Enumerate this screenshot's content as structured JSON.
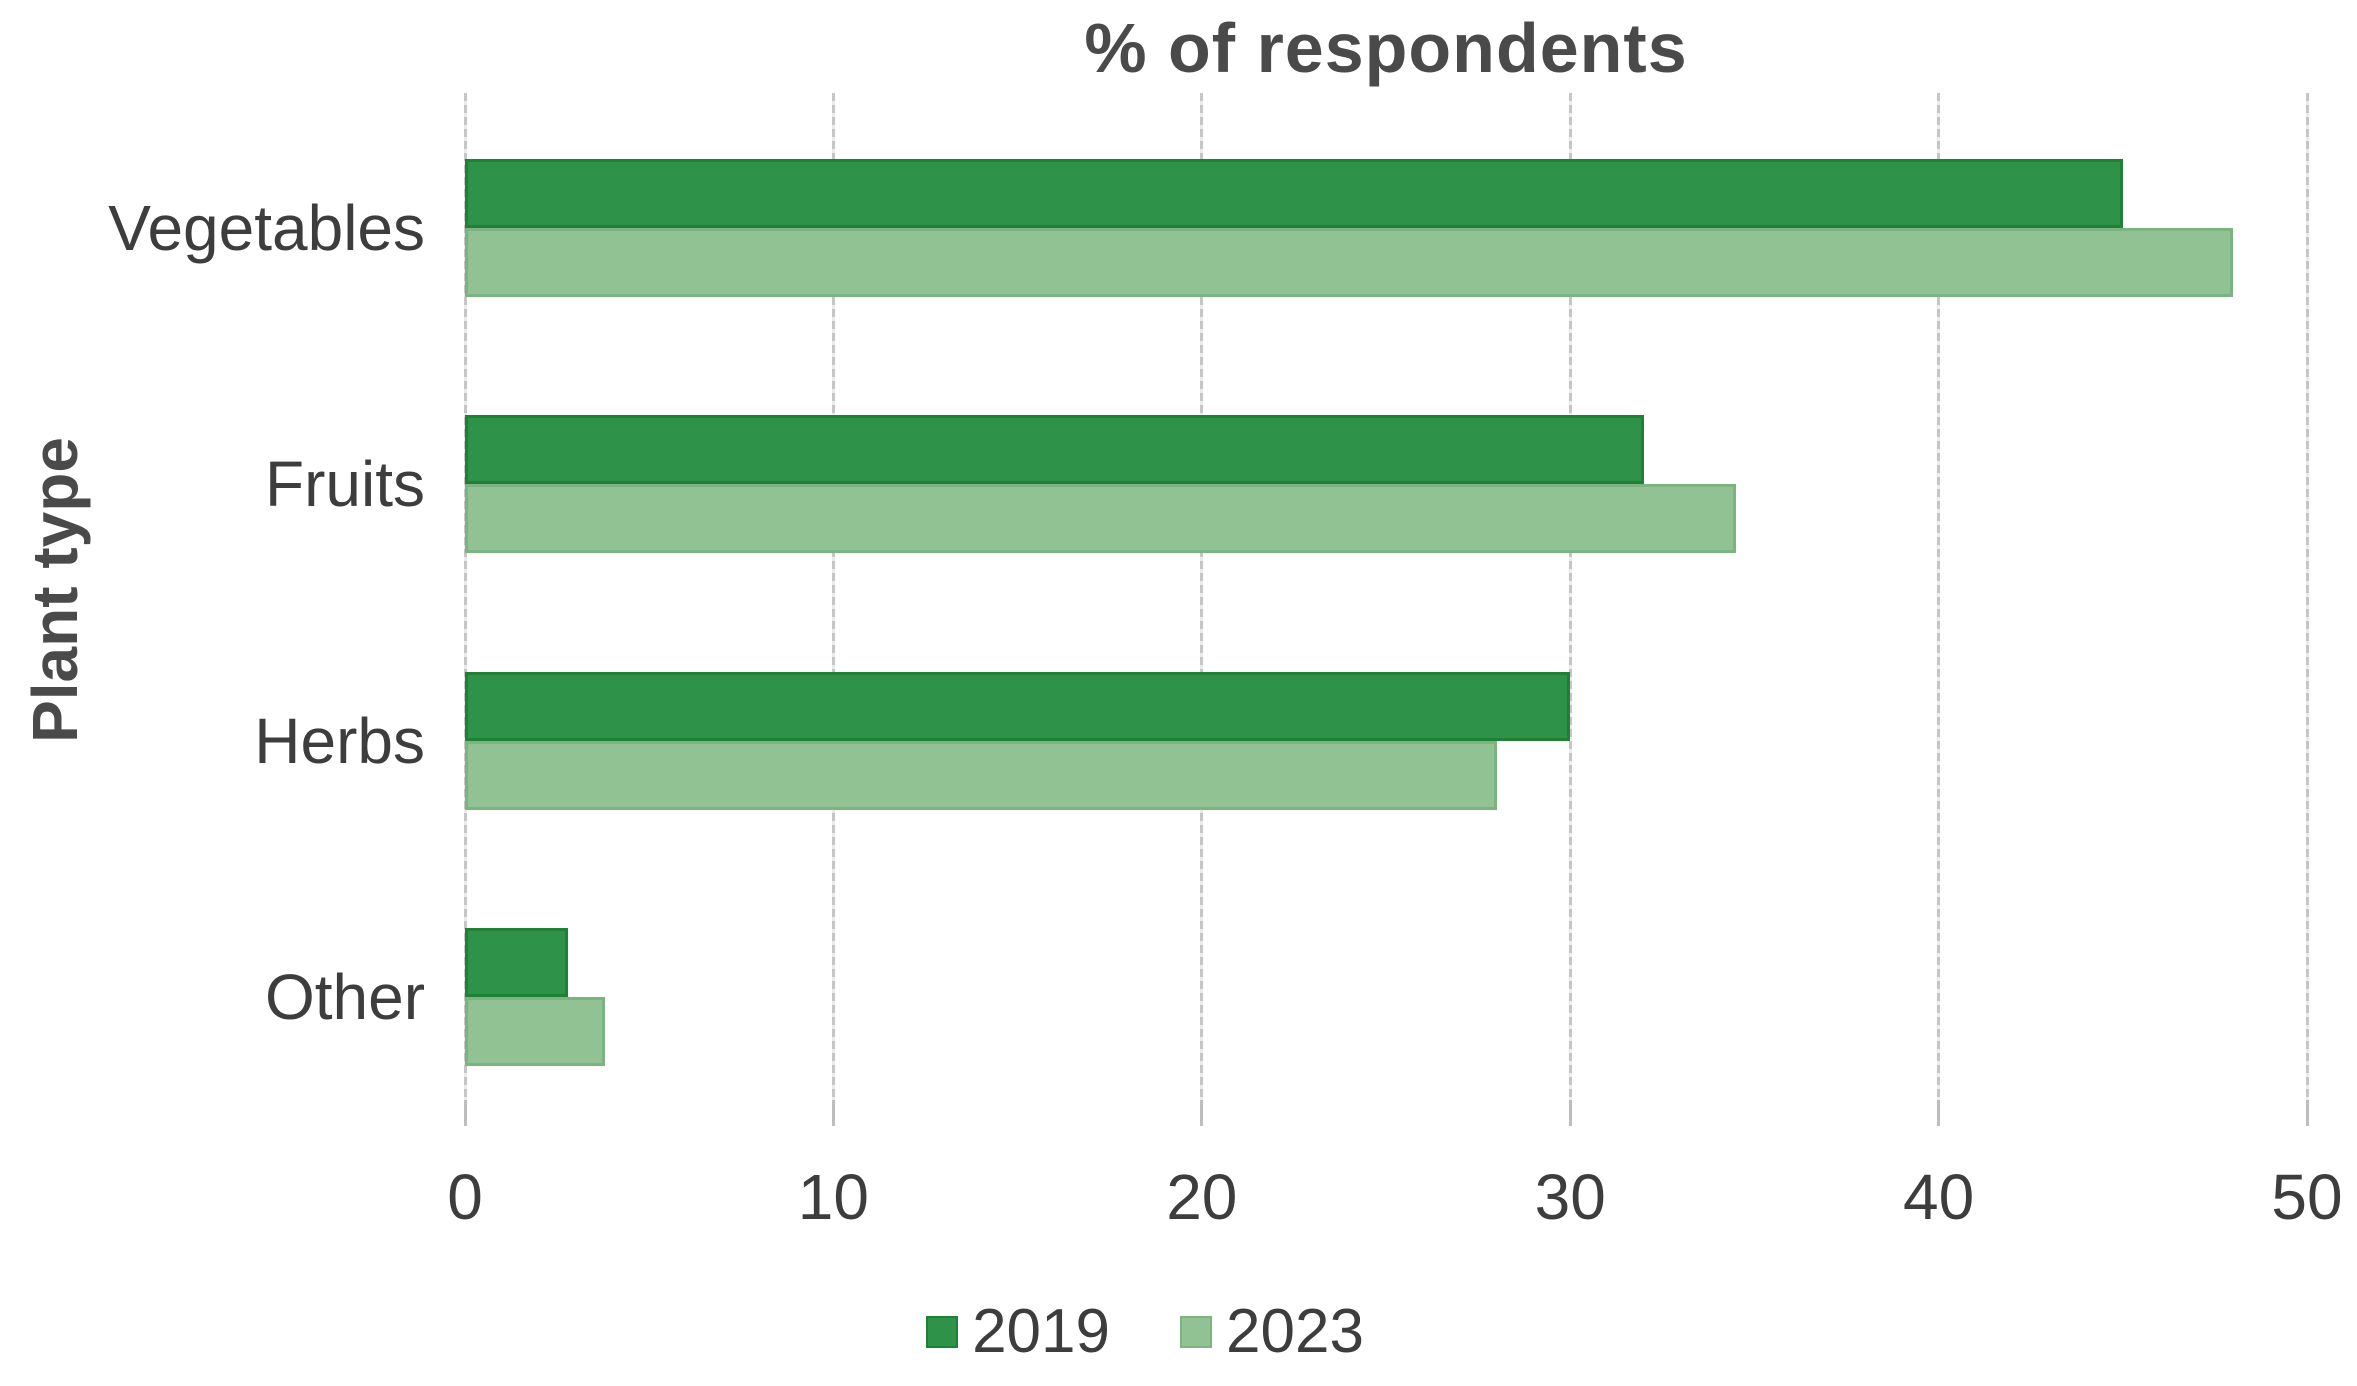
{
  "chart_data": {
    "type": "bar",
    "orientation": "horizontal",
    "title": "% of respondents",
    "xlabel": "",
    "ylabel": "Plant type",
    "categories": [
      "Vegetables",
      "Fruits",
      "Herbs",
      "Other"
    ],
    "series": [
      {
        "name": "2019",
        "values": [
          45,
          32,
          30,
          2.8
        ],
        "fill": "#2E9348",
        "border": "#1F8036"
      },
      {
        "name": "2023",
        "values": [
          48,
          34.5,
          28,
          3.8
        ],
        "fill": "#90C293",
        "border": "#7CB480"
      }
    ],
    "xlim": [
      0,
      50
    ],
    "xticks": [
      0,
      10,
      20,
      30,
      40,
      50
    ],
    "grid": "vertical-dashed",
    "legend_position": "bottom-center",
    "colors": {
      "grid": "#C6C6C6",
      "tick": "#BDBDBD",
      "axis_text": "#3D3D3D",
      "title_text": "#4A4A4A",
      "background": "#FFFFFF"
    }
  }
}
